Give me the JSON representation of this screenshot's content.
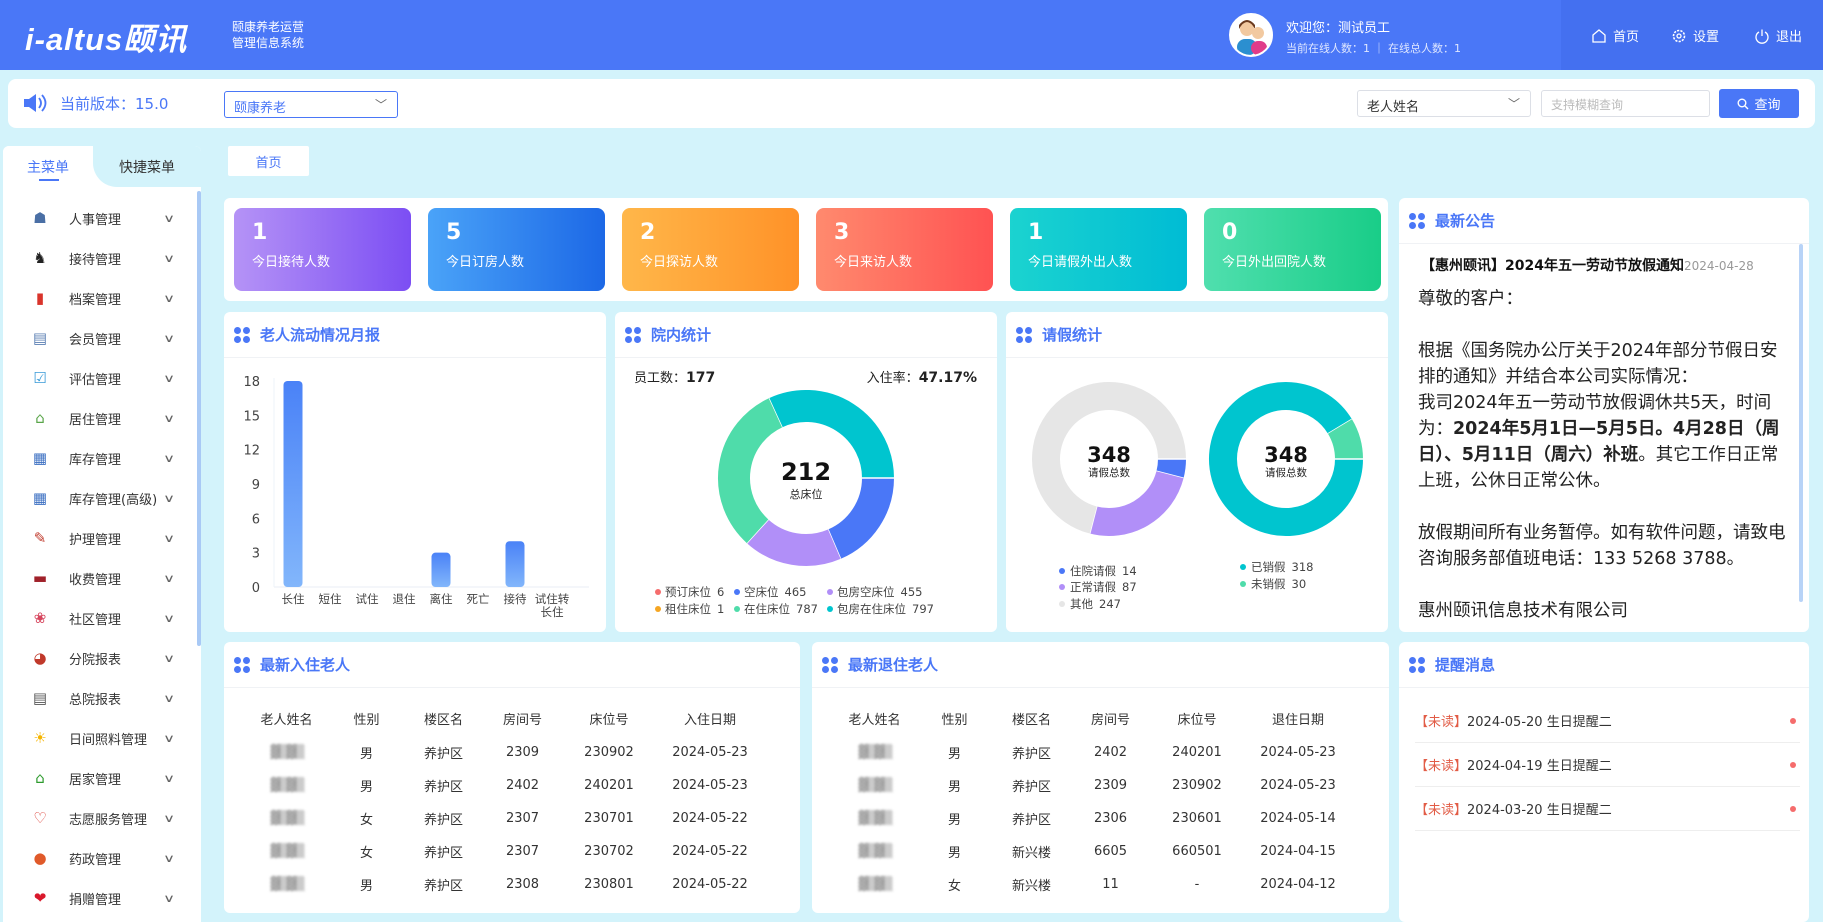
{
  "header": {
    "logo": "i-altus颐讯",
    "subtitle_1": "颐康养老运营",
    "subtitle_2": "管理信息系统",
    "welcome": "欢迎您：测试员工",
    "online": "当前在线人数：1 ｜ 在线总人数：1",
    "nav": [
      {
        "label": "首页",
        "icon": "home-icon"
      },
      {
        "label": "设置",
        "icon": "gear-icon"
      },
      {
        "label": "退出",
        "icon": "power-icon"
      }
    ]
  },
  "toolbar": {
    "version": "当前版本：15.0",
    "org_select": "颐康养老",
    "search_field_select": "老人姓名",
    "search_placeholder": "支持模糊查询",
    "search_button": "查询"
  },
  "sidebar": {
    "tabs": [
      "主菜单",
      "快捷菜单"
    ],
    "items": [
      {
        "label": "人事管理",
        "icon": "staff-icon",
        "color": "#4a6fa5"
      },
      {
        "label": "接待管理",
        "icon": "reception-icon",
        "color": "#222"
      },
      {
        "label": "档案管理",
        "icon": "archive-icon",
        "color": "#d9342b"
      },
      {
        "label": "会员管理",
        "icon": "member-card-icon",
        "color": "#5b7fb3"
      },
      {
        "label": "评估管理",
        "icon": "assessment-icon",
        "color": "#3a9bd8"
      },
      {
        "label": "居住管理",
        "icon": "house-icon",
        "color": "#5aa64a"
      },
      {
        "label": "库存管理",
        "icon": "inventory-icon",
        "color": "#3b6fc2"
      },
      {
        "label": "库存管理(高级)",
        "icon": "inventory-plus-icon",
        "color": "#3b6fc2"
      },
      {
        "label": "护理管理",
        "icon": "nursing-icon",
        "color": "#c0392b"
      },
      {
        "label": "收费管理",
        "icon": "charge-icon",
        "color": "#a0212a"
      },
      {
        "label": "社区管理",
        "icon": "community-icon",
        "color": "#d6455d"
      },
      {
        "label": "分院报表",
        "icon": "branch-report-icon",
        "color": "#c0392b"
      },
      {
        "label": "总院报表",
        "icon": "main-report-icon",
        "color": "#555"
      },
      {
        "label": "日间照料管理",
        "icon": "sun-icon",
        "color": "#f5b400"
      },
      {
        "label": "居家管理",
        "icon": "home-care-icon",
        "color": "#2e9b2e"
      },
      {
        "label": "志愿服务管理",
        "icon": "heart-hands-icon",
        "color": "#d9342b"
      },
      {
        "label": "药政管理",
        "icon": "pill-icon",
        "color": "#e05a2a"
      },
      {
        "label": "捐赠管理",
        "icon": "donate-heart-icon",
        "color": "#d9182b"
      }
    ]
  },
  "breadcrumb": {
    "tab": "首页"
  },
  "stats": [
    {
      "value": "1",
      "label": "今日接待人数",
      "from": "#b593f6",
      "to": "#7c4ef3"
    },
    {
      "value": "5",
      "label": "今日订房人数",
      "from": "#4aa3f8",
      "to": "#1c68e6"
    },
    {
      "value": "2",
      "label": "今日探访人数",
      "from": "#ffb74a",
      "to": "#ff9228"
    },
    {
      "value": "3",
      "label": "今日来访人数",
      "from": "#ff8a6e",
      "to": "#ff5252"
    },
    {
      "value": "1",
      "label": "今日请假外出人数",
      "from": "#1bd3d0",
      "to": "#00bcd4"
    },
    {
      "value": "0",
      "label": "今日外出回院人数",
      "from": "#50dfae",
      "to": "#19cd88"
    }
  ],
  "panels": {
    "flow": "老人流动情况月报",
    "beds": "院内统计",
    "leave": "请假统计",
    "checkin": "最新入住老人",
    "checkout": "最新退住老人",
    "notice": "最新公告",
    "remind": "提醒消息"
  },
  "chart_data": [
    {
      "type": "bar",
      "title": "",
      "categories": [
        "长住",
        "短住",
        "试住",
        "退住",
        "离住",
        "死亡",
        "接待",
        "试住转长住"
      ],
      "values": [
        18,
        0,
        0,
        0,
        3,
        0,
        4,
        0
      ],
      "ylim": [
        0,
        18
      ],
      "yticks": [
        0,
        3,
        6,
        9,
        12,
        15,
        18
      ],
      "color": "#4a86f7"
    },
    {
      "type": "pie",
      "staff_label": "员工数：",
      "staff": "177",
      "rate_label": "入住率：",
      "rate": "47.17%",
      "center_value": "212",
      "center_label": "总床位",
      "legend": [
        {
          "name": "预订床位",
          "value": 6,
          "color": "#f56c6c"
        },
        {
          "name": "空床位",
          "value": 465,
          "color": "#4a77f7"
        },
        {
          "name": "包房空床位",
          "value": 455,
          "color": "#b18ff8"
        },
        {
          "name": "租住床位",
          "value": 1,
          "color": "#f5a623"
        },
        {
          "name": "在住床位",
          "value": 787,
          "color": "#4fdcaa"
        },
        {
          "name": "包房在住床位",
          "value": 797,
          "color": "#00c5cf"
        }
      ]
    },
    {
      "type": "pie",
      "center_value": "348",
      "center_label": "请假总数",
      "slices": [
        {
          "name": "住院请假",
          "value": 14,
          "color": "#4a77f7"
        },
        {
          "name": "正常请假",
          "value": 87,
          "color": "#b18ff8"
        },
        {
          "name": "其他",
          "value": 247,
          "color": "#e6e6e6"
        }
      ]
    },
    {
      "type": "pie",
      "center_value": "348",
      "center_label": "请假总数",
      "slices": [
        {
          "name": "已销假",
          "value": 318,
          "color": "#00c5cf"
        },
        {
          "name": "未销假",
          "value": 30,
          "color": "#4fdcaa"
        }
      ]
    }
  ],
  "checkin": {
    "headers": [
      "老人姓名",
      "性别",
      "楼区名",
      "房间号",
      "床位号",
      "入住日期"
    ],
    "rows": [
      [
        "",
        "男",
        "养护区",
        "2309",
        "230902",
        "2024-05-23"
      ],
      [
        "",
        "男",
        "养护区",
        "2402",
        "240201",
        "2024-05-23"
      ],
      [
        "",
        "女",
        "养护区",
        "2307",
        "230701",
        "2024-05-22"
      ],
      [
        "",
        "女",
        "养护区",
        "2307",
        "230702",
        "2024-05-22"
      ],
      [
        "",
        "男",
        "养护区",
        "2308",
        "230801",
        "2024-05-22"
      ]
    ]
  },
  "checkout": {
    "headers": [
      "老人姓名",
      "性别",
      "楼区名",
      "房间号",
      "床位号",
      "退住日期"
    ],
    "rows": [
      [
        "",
        "男",
        "养护区",
        "2402",
        "240201",
        "2024-05-23"
      ],
      [
        "",
        "男",
        "养护区",
        "2309",
        "230902",
        "2024-05-23"
      ],
      [
        "",
        "男",
        "养护区",
        "2306",
        "230601",
        "2024-05-14"
      ],
      [
        "",
        "男",
        "新兴楼",
        "6605",
        "660501",
        "2024-04-15"
      ],
      [
        "",
        "女",
        "新兴楼",
        "11",
        "-",
        "2024-04-12"
      ]
    ]
  },
  "notice": {
    "title": "【惠州颐讯】2024年五一劳动节放假通知",
    "date": "2024-04-28",
    "p1": "尊敬的客户：",
    "p2": "根据《国务院办公厅关于2024年部分节假日安排的通知》并结合本公司实际情况：",
    "p3a": "我司2024年五一劳动节放假调休共5天，时间为：",
    "p3b": "2024年5月1日—5月5日。4月28日（周日）、5月11日（周六）补班",
    "p3c": "。其它工作日正常上班，公休日正常公休。",
    "p4": "放假期间所有业务暂停。如有软件问题，请致电咨询服务部值班电话：133 5268 3788。",
    "p5": "惠州颐讯信息技术有限公司"
  },
  "reminders": [
    {
      "tag": "【未读】",
      "text": "2024-05-20 生日提醒二"
    },
    {
      "tag": "【未读】",
      "text": "2024-04-19 生日提醒二"
    },
    {
      "tag": "【未读】",
      "text": "2024-03-20 生日提醒二"
    }
  ]
}
